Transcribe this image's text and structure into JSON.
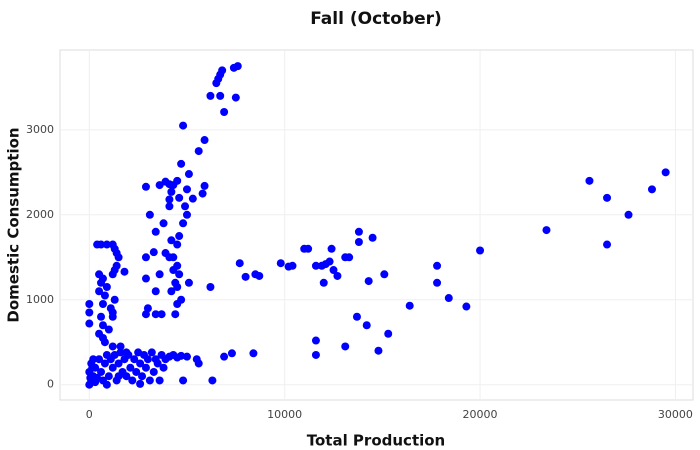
{
  "chart_data": {
    "type": "scatter",
    "title": "Fall (October)",
    "x_label": "Total Production",
    "y_label": "Domestic Consumption",
    "color": "#0000ff",
    "grid": true,
    "xlim": [
      -1500,
      30900
    ],
    "ylim": [
      -180,
      3940
    ],
    "xticks": [
      0,
      10000,
      20000,
      30000
    ],
    "yticks": [
      0,
      1000,
      2000,
      3000
    ],
    "x": [
      7600,
      7400,
      6800,
      6700,
      6600,
      6500,
      6200,
      6700,
      7500,
      6900,
      4800,
      5900,
      5600,
      4700,
      5100,
      4500,
      3900,
      4100,
      3600,
      4300,
      2900,
      5900,
      5800,
      5000,
      4200,
      4100,
      5300,
      4600,
      3100,
      4900,
      4100,
      3800,
      5000,
      4800,
      3400,
      4200,
      4600,
      4500,
      3300,
      3900,
      2900,
      4100,
      4300,
      4500,
      4300,
      4600,
      3600,
      2900,
      4400,
      5100,
      4500,
      3400,
      4200,
      4700,
      4500,
      3000,
      2900,
      3400,
      3700,
      4400,
      6200,
      400,
      600,
      900,
      1200,
      1300,
      1400,
      1500,
      1400,
      1300,
      1200,
      1800,
      500,
      700,
      600,
      900,
      500,
      800,
      1300,
      700,
      1100,
      1200,
      600,
      1200,
      700,
      1000,
      500,
      700,
      0,
      0,
      0,
      800,
      1200,
      1600,
      7700,
      8000,
      8500,
      8700,
      9800,
      10200,
      10400,
      11000,
      11200,
      11600,
      11900,
      12000,
      12100,
      12300,
      12400,
      12500,
      12700,
      13100,
      13300,
      13800,
      13800,
      14300,
      14500,
      15100,
      17800,
      17800,
      18400,
      19300,
      20000,
      23400,
      25600,
      26500,
      26500,
      27600,
      28800,
      29500,
      16400,
      13700,
      14200,
      15300,
      14800,
      11600,
      11600,
      13100,
      7300,
      6900,
      8400,
      6300,
      4800,
      3600,
      5600,
      5500,
      0,
      100,
      200,
      0,
      100,
      300,
      400,
      500,
      600,
      700,
      800,
      900,
      1000,
      1100,
      1200,
      1300,
      1400,
      1500,
      1600,
      1700,
      1800,
      1900,
      2000,
      2100,
      2200,
      2300,
      2400,
      2500,
      2600,
      2700,
      2800,
      2900,
      3000,
      3100,
      3200,
      3300,
      3400,
      3500,
      3700,
      3900,
      4100,
      4300,
      4500,
      4700,
      5000,
      300,
      50,
      200,
      1500,
      2600,
      900,
      1900,
      3800,
      150
    ],
    "values": [
      3750,
      3730,
      3700,
      3650,
      3600,
      3550,
      3400,
      3400,
      3380,
      3210,
      3050,
      2880,
      2750,
      2600,
      2480,
      2400,
      2390,
      2360,
      2350,
      2350,
      2330,
      2340,
      2250,
      2300,
      2270,
      2180,
      2190,
      2200,
      2000,
      2100,
      2100,
      1900,
      2000,
      1900,
      1800,
      1700,
      1750,
      1650,
      1560,
      1550,
      1500,
      1500,
      1500,
      1400,
      1350,
      1300,
      1300,
      1250,
      1200,
      1200,
      1150,
      1100,
      1100,
      1000,
      950,
      900,
      830,
      830,
      830,
      830,
      1150,
      1650,
      1650,
      1650,
      1650,
      1600,
      1550,
      1500,
      1400,
      1350,
      1300,
      1330,
      1300,
      1250,
      1200,
      1150,
      1100,
      1050,
      1000,
      950,
      900,
      850,
      800,
      800,
      700,
      650,
      600,
      550,
      950,
      850,
      720,
      500,
      450,
      450,
      1430,
      1270,
      1300,
      1280,
      1430,
      1390,
      1400,
      1600,
      1600,
      1400,
      1400,
      1200,
      1420,
      1450,
      1600,
      1350,
      1280,
      1500,
      1500,
      1800,
      1680,
      1220,
      1730,
      1300,
      1400,
      1200,
      1020,
      920,
      1580,
      1820,
      2400,
      2200,
      1650,
      2000,
      2300,
      2500,
      930,
      800,
      700,
      600,
      400,
      520,
      350,
      450,
      370,
      330,
      370,
      50,
      50,
      50,
      250,
      300,
      0,
      50,
      100,
      150,
      250,
      200,
      80,
      300,
      150,
      50,
      250,
      350,
      100,
      300,
      200,
      350,
      50,
      250,
      380,
      150,
      300,
      100,
      350,
      200,
      50,
      300,
      150,
      380,
      250,
      100,
      350,
      200,
      300,
      50,
      380,
      150,
      300,
      250,
      350,
      300,
      330,
      350,
      320,
      340,
      330,
      30,
      80,
      300,
      100,
      10,
      0,
      380,
      200,
      200
    ]
  }
}
